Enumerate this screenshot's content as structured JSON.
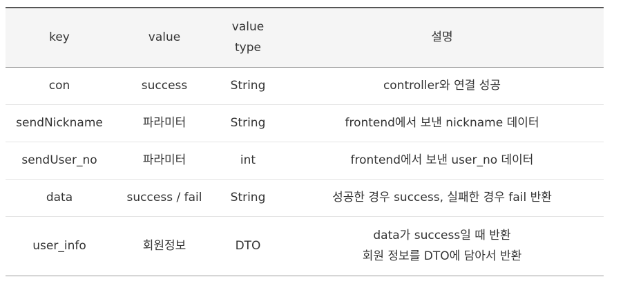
{
  "table": {
    "headers": {
      "key": "key",
      "value": "value",
      "value_type_line1": "value",
      "value_type_line2": "type",
      "description": "설명"
    },
    "rows": [
      {
        "key": "con",
        "value": "success",
        "type": "String",
        "desc": [
          "controller와 연결 성공"
        ]
      },
      {
        "key": "sendNickname",
        "value": "파라미터",
        "type": "String",
        "desc": [
          "frontend에서 보낸 nickname 데이터"
        ]
      },
      {
        "key": "sendUser_no",
        "value": "파라미터",
        "type": "int",
        "desc": [
          "frontend에서 보낸 user_no 데이터"
        ]
      },
      {
        "key": "data",
        "value": "success / fail",
        "type": "String",
        "desc": [
          "성공한 경우 success, 실패한 경우 fail 반환"
        ]
      },
      {
        "key": "user_info",
        "value": "회원정보",
        "type": "DTO",
        "desc": [
          "data가 success일 때 반환",
          "회원 정보를 DTO에 담아서 반환"
        ]
      }
    ]
  }
}
